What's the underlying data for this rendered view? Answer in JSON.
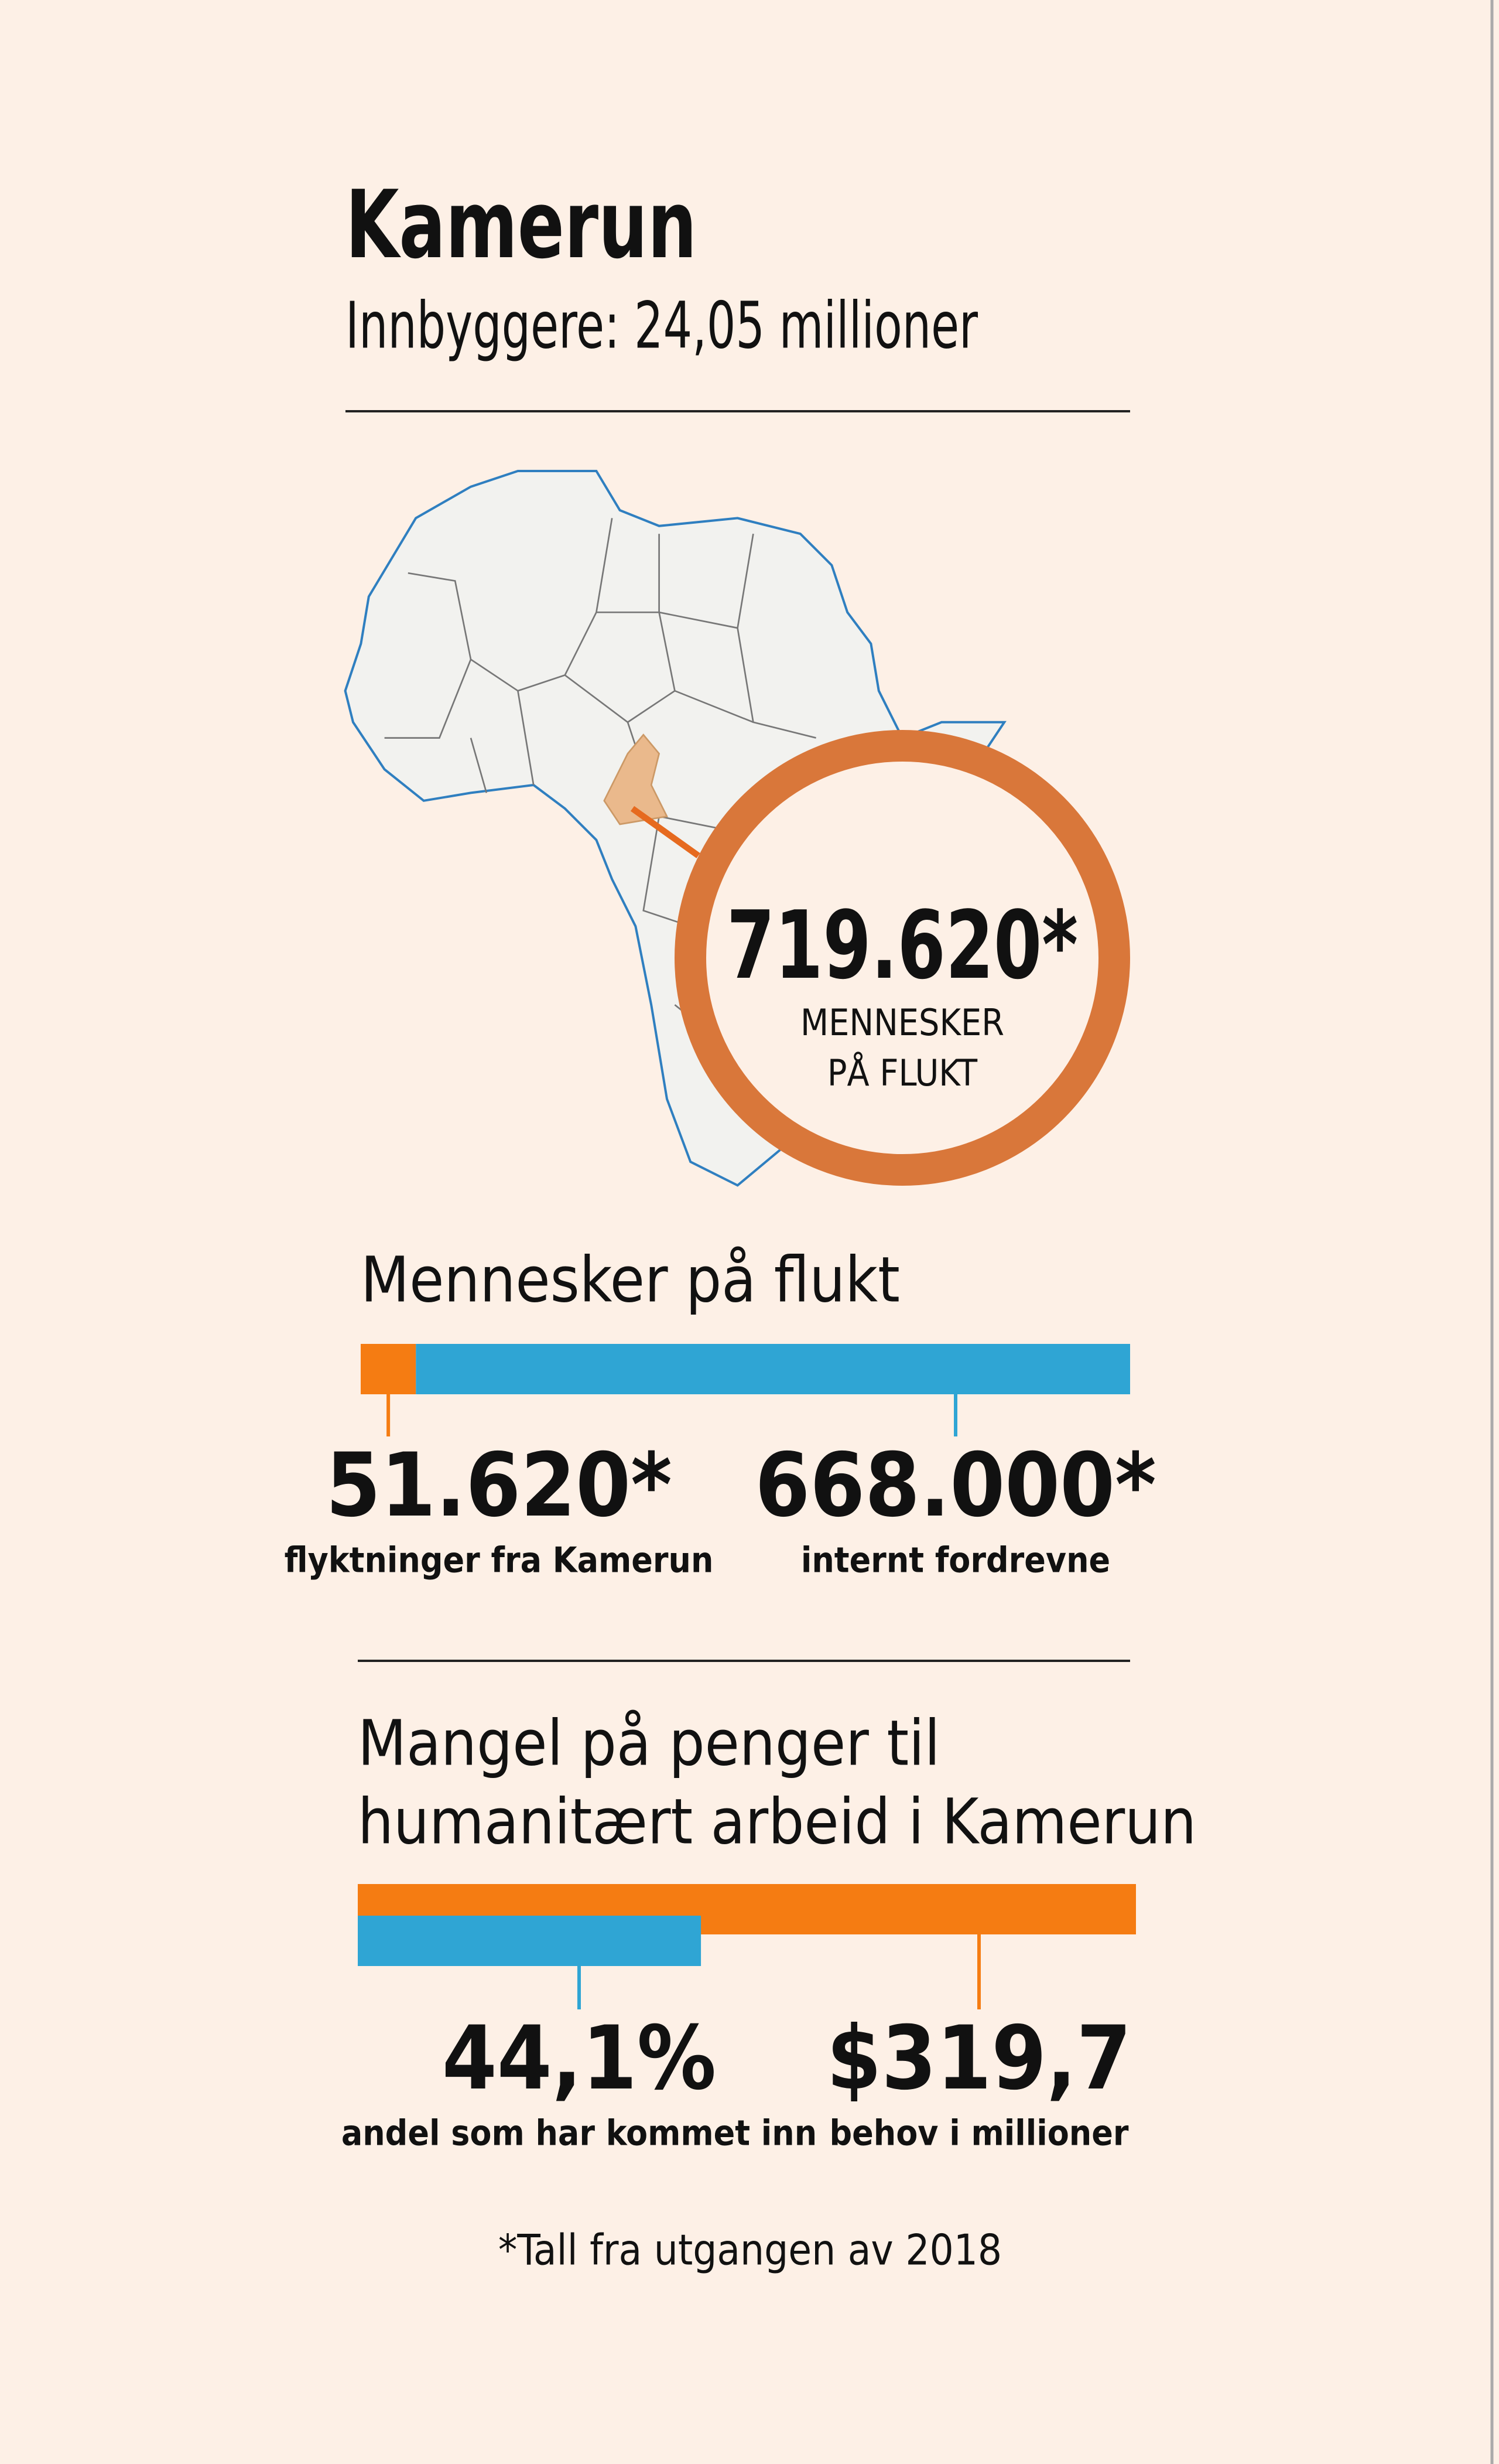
{
  "header": {
    "title": "Kamerun",
    "subtitle": "Innbyggere: 24,05 millioner"
  },
  "map": {
    "total": {
      "value": 719620,
      "label": "719.620*"
    },
    "caption": [
      "MENNESKER",
      "PÅ FLUKT"
    ]
  },
  "chart_data": [
    {
      "type": "stacked_bar",
      "title": [
        "Mennesker på flukt"
      ],
      "xlim": [
        0,
        719620
      ],
      "series": [
        {
          "name": "flyktninger fra Kamerun",
          "color": "#f57c12",
          "values": [
            51620
          ],
          "value_labels": [
            "51.620*"
          ]
        },
        {
          "name": "internt fordrevne",
          "color": "#2fa5d4",
          "values": [
            668000
          ],
          "value_labels": [
            "668.000*"
          ]
        }
      ]
    },
    {
      "type": "share_bar",
      "title": [
        "Mangel på penger til",
        "humanitært arbeid i Kamerun"
      ],
      "xlim": [
        0,
        100
      ],
      "series": [
        {
          "name": "andel som har kommet inn",
          "color": "#2fa5d4",
          "values": [
            44.1
          ],
          "value_labels": [
            "44,1%"
          ]
        },
        {
          "name": "behov i millioner",
          "color": "#f57c12",
          "values": [
            319.7
          ],
          "value_labels": [
            "$319,7"
          ]
        }
      ]
    }
  ],
  "footnote": "*Tall fra utgangen av 2018"
}
